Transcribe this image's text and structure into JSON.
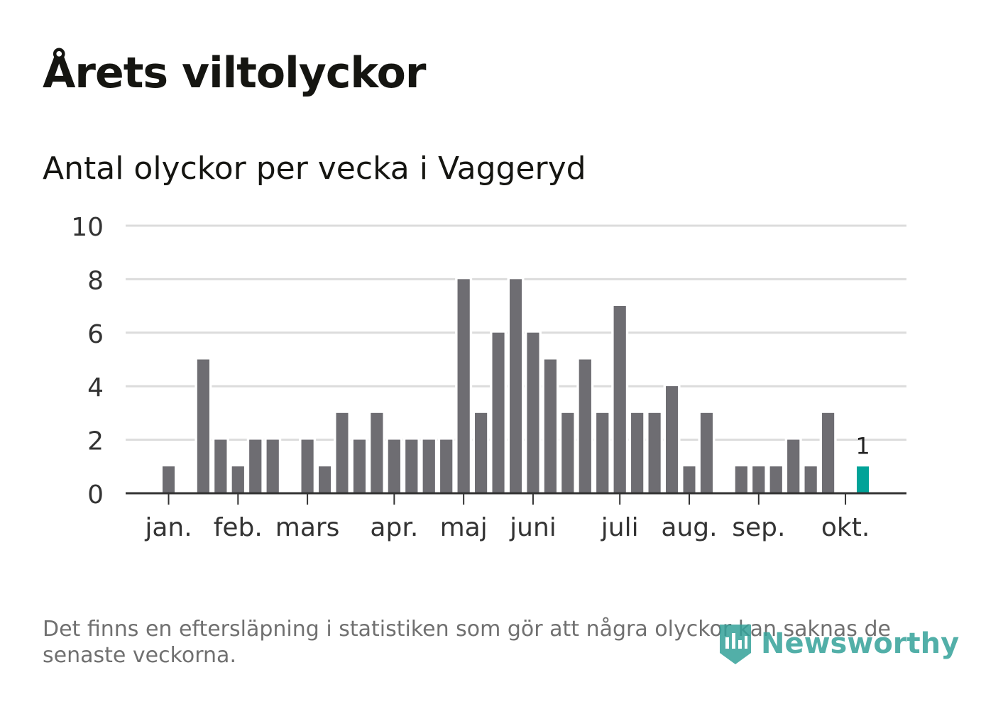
{
  "title": "Årets viltolyckor",
  "subtitle": "Antal olyckor per vecka i Vaggeryd",
  "footnote": "Det finns en eftersläpning i statistiken som gör att några olyckor kan saknas de senaste veckorna.",
  "brand": "Newsworthy",
  "colors": {
    "bar": "#6e6d72",
    "highlight": "#00a398",
    "grid": "#dcdcdc",
    "axis": "#333333"
  },
  "chart_data": {
    "type": "bar",
    "title": "Årets viltolyckor",
    "subtitle": "Antal olyckor per vecka i Vaggeryd",
    "xlabel": "",
    "ylabel": "",
    "ylim": [
      0,
      10
    ],
    "yticks": [
      "0",
      "2",
      "4",
      "6",
      "8",
      "10"
    ],
    "grid": true,
    "weeks": [
      1,
      2,
      3,
      4,
      5,
      6,
      7,
      8,
      9,
      10,
      11,
      12,
      13,
      14,
      15,
      16,
      17,
      18,
      19,
      20,
      21,
      22,
      23,
      24,
      25,
      26,
      27,
      28,
      29,
      30,
      31,
      32,
      33,
      34,
      35,
      36,
      37,
      38,
      39,
      40,
      41
    ],
    "values": [
      1,
      0,
      5,
      2,
      1,
      2,
      2,
      0,
      2,
      1,
      3,
      2,
      3,
      2,
      2,
      2,
      2,
      8,
      3,
      6,
      8,
      6,
      5,
      3,
      5,
      3,
      7,
      3,
      3,
      4,
      1,
      3,
      0,
      1,
      1,
      1,
      2,
      1,
      3,
      0,
      1
    ],
    "highlight_index": 40,
    "highlight_label": "1",
    "month_ticks": [
      {
        "label": "jan.",
        "week": 1
      },
      {
        "label": "feb.",
        "week": 5
      },
      {
        "label": "mars",
        "week": 9
      },
      {
        "label": "apr.",
        "week": 14
      },
      {
        "label": "maj",
        "week": 18
      },
      {
        "label": "juni",
        "week": 22
      },
      {
        "label": "juli",
        "week": 27
      },
      {
        "label": "aug.",
        "week": 31
      },
      {
        "label": "sep.",
        "week": 35
      },
      {
        "label": "okt.",
        "week": 40
      }
    ]
  }
}
